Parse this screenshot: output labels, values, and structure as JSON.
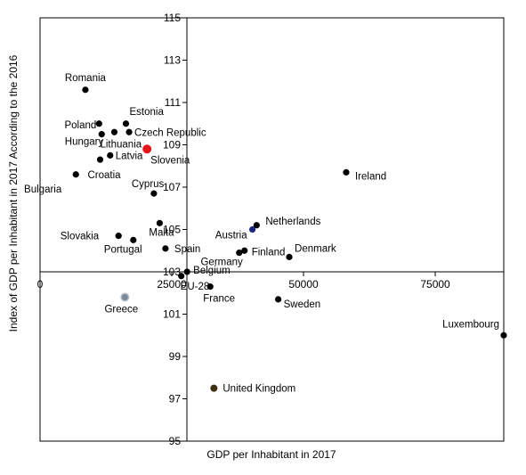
{
  "chart_data": {
    "type": "scatter",
    "title": "",
    "xlabel": "GDP per Inhabitant  in 2017",
    "ylabel": "Index of GDP per Inhabitant in 2017 According to the 2016",
    "xlim": [
      0,
      88000
    ],
    "ylim": [
      95,
      115
    ],
    "x_ticks": [
      0,
      25000,
      50000,
      75000
    ],
    "y_ticks": [
      95,
      97,
      99,
      101,
      103,
      105,
      107,
      109,
      111,
      113,
      115
    ],
    "x_axis_crossing_y": 103,
    "grid": false,
    "legend": "none",
    "colors": {
      "default": "#000000",
      "slovenia": "#e8141b",
      "greece": "#7d8a96",
      "united_kingdom": "#3d2e12",
      "eu28_label": "#2244cc",
      "austria_marker": "#1a237e"
    },
    "points": [
      {
        "name": "Romania",
        "x": 8600,
        "y": 111.6
      },
      {
        "name": "Estonia",
        "x": 16300,
        "y": 110.0
      },
      {
        "name": "Poland",
        "x": 11200,
        "y": 110.0
      },
      {
        "name": "Czech Republic",
        "x": 16900,
        "y": 109.6
      },
      {
        "name": "Hungary",
        "x": 11700,
        "y": 109.5
      },
      {
        "name": "Lithuania",
        "x": 14100,
        "y": 109.6
      },
      {
        "name": "Slovenia",
        "x": 20300,
        "y": 108.8
      },
      {
        "name": "Latvia",
        "x": 13300,
        "y": 108.5
      },
      {
        "name": "Croatia",
        "x": 11400,
        "y": 108.3
      },
      {
        "name": "Bulgaria",
        "x": 6800,
        "y": 107.6
      },
      {
        "name": "Cyprus",
        "x": 21600,
        "y": 106.7
      },
      {
        "name": "Ireland",
        "x": 58100,
        "y": 107.7
      },
      {
        "name": "Malta",
        "x": 22700,
        "y": 105.3
      },
      {
        "name": "Slovakia",
        "x": 14900,
        "y": 104.7
      },
      {
        "name": "Portugal",
        "x": 17700,
        "y": 104.5
      },
      {
        "name": "Spain",
        "x": 23800,
        "y": 104.1
      },
      {
        "name": "Netherlands",
        "x": 41100,
        "y": 105.2
      },
      {
        "name": "Austria",
        "x": 40300,
        "y": 105.0
      },
      {
        "name": "Germany",
        "x": 37800,
        "y": 103.9
      },
      {
        "name": "Finland",
        "x": 38800,
        "y": 104.0
      },
      {
        "name": "Denmark",
        "x": 47300,
        "y": 103.7
      },
      {
        "name": "Belgium",
        "x": 27900,
        "y": 103.0
      },
      {
        "name": "EU-28",
        "x": 26800,
        "y": 102.8
      },
      {
        "name": "France",
        "x": 32300,
        "y": 102.3
      },
      {
        "name": "Sweden",
        "x": 45200,
        "y": 101.7
      },
      {
        "name": "Greece",
        "x": 16100,
        "y": 101.8
      },
      {
        "name": "Luxembourg",
        "x": 88000,
        "y": 100.0
      },
      {
        "name": "United Kingdom",
        "x": 33000,
        "y": 97.5
      }
    ]
  }
}
